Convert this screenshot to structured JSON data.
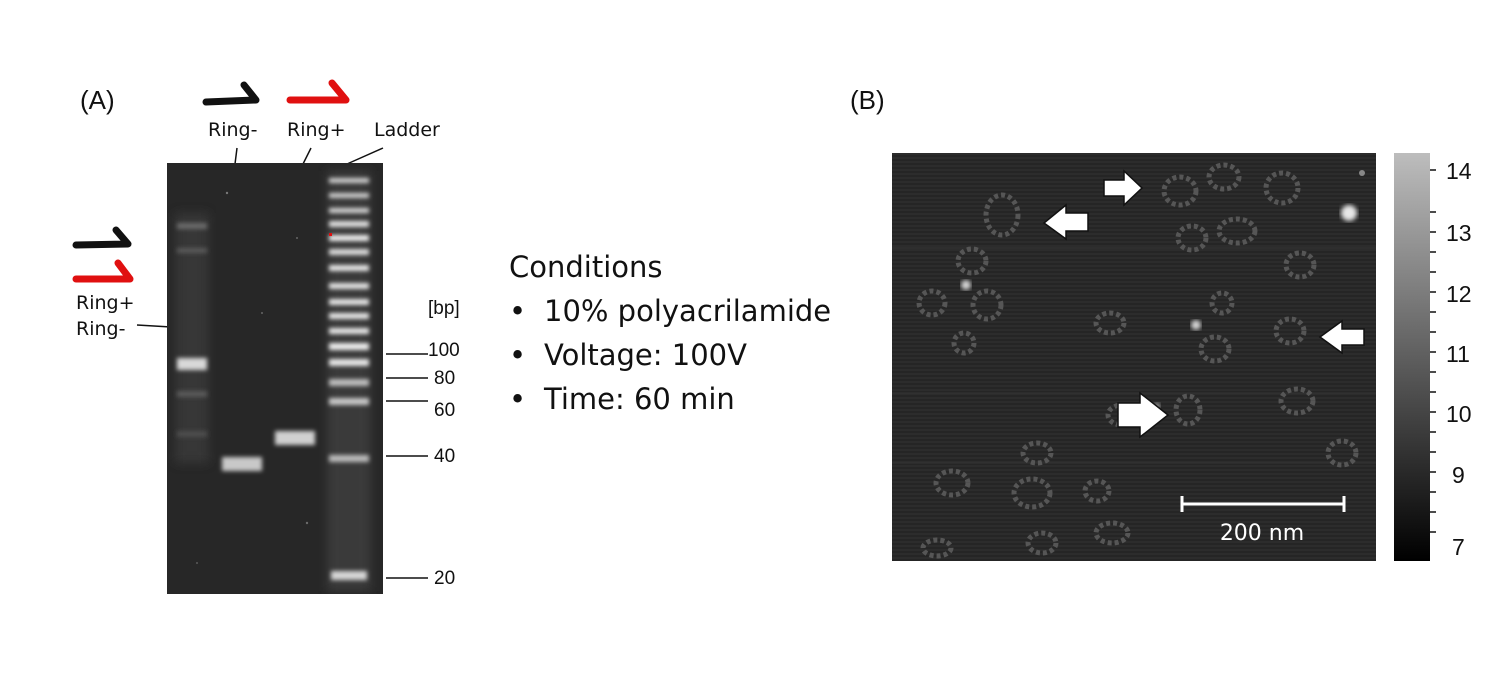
{
  "panel_a": {
    "label": "(A)",
    "lane_labels": [
      "Ring-",
      "Ring+",
      "Ladder"
    ],
    "side_label": [
      "Ring+",
      "Ring-"
    ],
    "bp_unit": "[bp]",
    "bp_markers": [
      "100",
      "80",
      "60",
      "40",
      "20"
    ]
  },
  "conditions": {
    "title": "Conditions",
    "items": [
      "10% polyacrilamide",
      "Voltage: 100V",
      "Time: 60 min"
    ]
  },
  "panel_b": {
    "label": "(B)",
    "scale_bar": "200 nm",
    "colorbar_ticks": [
      "14",
      "13",
      "12",
      "11",
      "10",
      "9",
      "7"
    ]
  },
  "colors": {
    "strand_black": "#111111",
    "strand_red": "#e01010",
    "gel_bg": "#262626",
    "afm_bg": "#2a2a2a"
  }
}
